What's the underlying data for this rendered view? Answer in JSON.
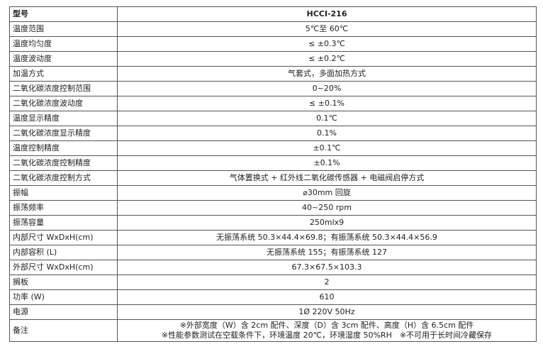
{
  "header": {
    "label": "型号",
    "value": "HCCI-216"
  },
  "rows": [
    {
      "label": "温度范围",
      "value": "5℃至 60℃"
    },
    {
      "label": "温度均匀度",
      "value": "≤ ±0.3℃"
    },
    {
      "label": "温度波动度",
      "value": "≤ ±0.2℃"
    },
    {
      "label": "加温方式",
      "value": "气套式，多面加热方式"
    },
    {
      "label": "二氧化碳浓度控制范围",
      "value": "0~20%"
    },
    {
      "label": "二氧化碳浓度波动度",
      "value": "≤ ±0.1%"
    },
    {
      "label": "温度显示精度",
      "value": "0.1℃"
    },
    {
      "label": "二氧化碳浓度显示精度",
      "value": "0.1%"
    },
    {
      "label": "温度控制精度",
      "value": "±0.1℃"
    },
    {
      "label": "二氧化碳浓度控制精度",
      "value": "±0.1%"
    },
    {
      "label": "二氧化碳浓度控制方式",
      "value": "气体置换式 + 红外线二氧化碳传感器 + 电磁阀启停方式"
    },
    {
      "label": "振幅",
      "value": "⌀30mm 回旋"
    },
    {
      "label": "振荡频率",
      "value": "40~250 rpm"
    },
    {
      "label": "振荡容量",
      "value": "250mlx9"
    },
    {
      "label": "内部尺寸 WxDxH(cm)",
      "value": "无振荡系统 50.3×44.4×69.8；有振荡系统 50.3×44.4×56.9"
    },
    {
      "label": "内部容积 (L)",
      "value": "无振荡系统 155；有振荡系统 127"
    },
    {
      "label": "外部尺寸 WxDxH(cm)",
      "value": "67.3×67.5×103.3"
    },
    {
      "label": "搁板",
      "value": "2"
    },
    {
      "label": "功率 (W)",
      "value": "610"
    },
    {
      "label": "电源",
      "value": "1Ø 220V 50Hz"
    }
  ],
  "note": {
    "label": "备注",
    "line1": "※外部宽度（W）含 2cm 配件、深度（D）含 3cm 配件、高度（H）含 6.5cm 配件",
    "line2": "※性能参数测试在空载条件下，环境温度 20℃，环境湿度 50%RH　※不可用于长时间冷藏保存"
  }
}
